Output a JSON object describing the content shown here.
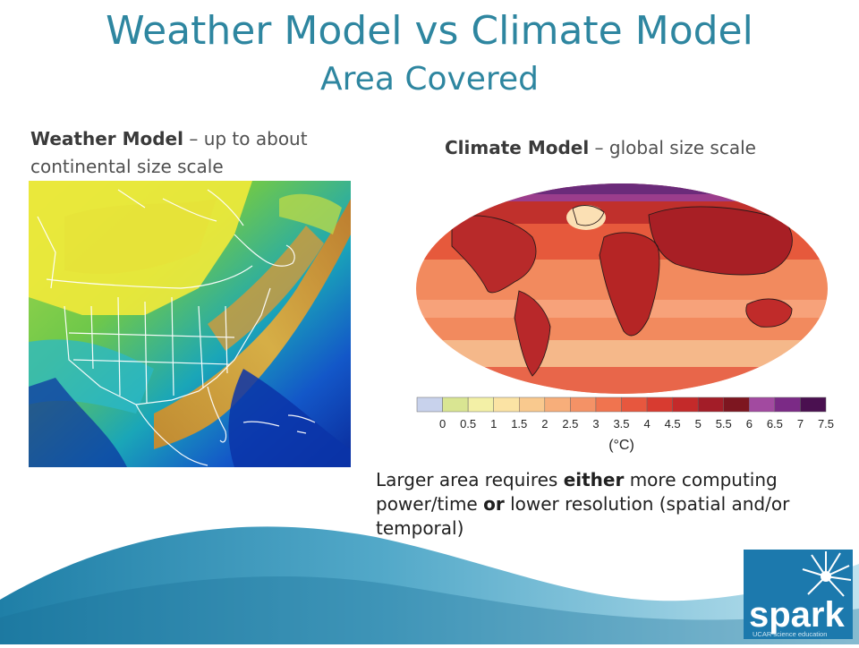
{
  "slide": {
    "title": "Weather Model vs Climate Model",
    "subtitle": "Area Covered",
    "weather": {
      "label_bold": "Weather Model",
      "label_rest": " – up to about continental size scale"
    },
    "climate": {
      "label_bold": "Climate Model",
      "label_rest": " – global size scale"
    },
    "note": {
      "part1": "Larger area requires ",
      "bold1": "either",
      "part2": " more computing power/time ",
      "bold2": "or",
      "part3": " lower resolution (spatial and/or temporal)"
    },
    "logo": {
      "word": "spark",
      "tagline": "UCAR science education"
    }
  },
  "legend": {
    "ticks": [
      "0",
      "0.5",
      "1",
      "1.5",
      "2",
      "2.5",
      "3",
      "3.5",
      "4",
      "4.5",
      "5",
      "5.5",
      "6",
      "6.5",
      "7",
      "7.5"
    ],
    "unit": "(°C)",
    "colors": [
      "#c8d2ec",
      "#d9e592",
      "#f3f0a6",
      "#fbe3a4",
      "#f9c98e",
      "#f7ae7a",
      "#f49266",
      "#f0744f",
      "#e7573e",
      "#d83b30",
      "#c42a2a",
      "#a31d28",
      "#7d1620",
      "#a24aa0",
      "#7b2a86",
      "#4a1050"
    ]
  },
  "colors": {
    "title": "#2e86a0",
    "wave_dark": "#1f7fa7",
    "wave_light": "#bfe3ef",
    "logo_bg": "#1c79ad"
  }
}
